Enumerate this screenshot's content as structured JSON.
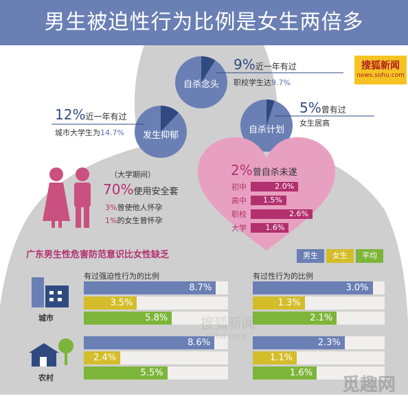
{
  "header": {
    "title": "男生被迫性行为比例是女生两倍多"
  },
  "logo": {
    "name": "搜狐新闻",
    "url": "news.sohu.com"
  },
  "bubbles": [
    {
      "label": "自杀念头",
      "pct": "9%",
      "text": "近一年有过",
      "sub_prefix": "职校学生达",
      "sub_value": "9.7%",
      "fraction": 0.09
    },
    {
      "label": "发生抑郁",
      "pct": "12%",
      "text": "近一年有过",
      "sub_prefix": "城市大学生为",
      "sub_value": "14.7%",
      "fraction": 0.12
    },
    {
      "label": "自杀计划",
      "pct": "5%",
      "text": "曾有过",
      "sub_prefix": "女生居高",
      "sub_value": "",
      "fraction": 0.05
    }
  ],
  "contraception": {
    "period": "（大学期间）",
    "pct": "70%",
    "text": "使用安全套",
    "line2_pct": "3%",
    "line2_text": "曾使他人怀孕",
    "line3_pct": "1%",
    "line3_text": "的女生曾怀孕"
  },
  "heart": {
    "pct": "2%",
    "text": "曾自杀未遂",
    "rows": [
      {
        "label": "初中",
        "value": 2.0,
        "display": "2.0%"
      },
      {
        "label": "高中",
        "value": 1.5,
        "display": "1.5%"
      },
      {
        "label": "职校",
        "value": 2.6,
        "display": "2.6%"
      },
      {
        "label": "大学",
        "value": 1.6,
        "display": "1.6%"
      }
    ]
  },
  "section": {
    "title": "广东男生性危害防范意识比女性缺乏"
  },
  "legend": [
    {
      "name": "男生",
      "color": "#6a7fb4"
    },
    {
      "name": "女生",
      "color": "#d4bd2a"
    },
    {
      "name": "平均",
      "color": "#7db53a"
    }
  ],
  "categories": {
    "city": "城市",
    "rural": "农村"
  },
  "chart_data": [
    {
      "type": "bar",
      "title": "有过强迫性行为的比例",
      "categories": [
        "城市",
        "农村"
      ],
      "series": [
        {
          "name": "男生",
          "values": [
            8.7,
            8.6
          ],
          "labels": [
            "8.7%",
            "8.6%"
          ]
        },
        {
          "name": "女生",
          "values": [
            3.5,
            2.4
          ],
          "labels": [
            "3.5%",
            "2.4%"
          ]
        },
        {
          "name": "平均",
          "values": [
            5.8,
            5.5
          ],
          "labels": [
            "5.8%",
            "5.5%"
          ]
        }
      ],
      "xlim": [
        0,
        9.5
      ]
    },
    {
      "type": "bar",
      "title": "有过性行为的比例",
      "categories": [
        "城市",
        "农村"
      ],
      "series": [
        {
          "name": "男生",
          "values": [
            3.0,
            2.3
          ],
          "labels": [
            "3.0%",
            "2.3%"
          ]
        },
        {
          "name": "女生",
          "values": [
            1.3,
            1.1
          ],
          "labels": [
            "1.3%",
            "1.1%"
          ]
        },
        {
          "name": "平均",
          "values": [
            2.1,
            1.6
          ],
          "labels": [
            "2.1%",
            "1.6%"
          ]
        }
      ],
      "xlim": [
        0,
        3.3
      ]
    }
  ],
  "watermark": {
    "text1": "搜狐新闻",
    "text2": "sohu.com",
    "corner": "觅趣网"
  }
}
